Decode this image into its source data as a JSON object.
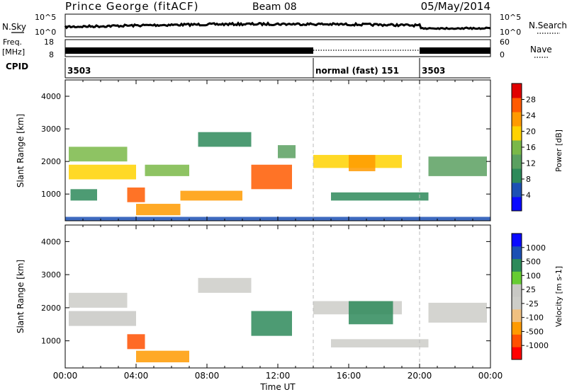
{
  "header": {
    "station": "Prince George (fitACF)",
    "beam": "Beam 08",
    "date": "05/May/2014"
  },
  "noise_panel": {
    "left_label": "N.Sky",
    "right_label": "N.Search",
    "left_ticks": [
      "10^5",
      "10^0"
    ],
    "right_ticks": [
      "10^5",
      "10^0"
    ]
  },
  "freq_panel": {
    "left_label_1": "Freq.",
    "left_label_2": "[MHz]",
    "right_label": "Nave",
    "left_ticks": [
      "18",
      "8"
    ],
    "right_ticks": [
      "60",
      "0"
    ]
  },
  "cpid_panel": {
    "label": "CPID",
    "segments": [
      {
        "start_h": 0,
        "end_h": 14,
        "text": "3503"
      },
      {
        "start_h": 14,
        "end_h": 20,
        "text": "normal (fast) 151"
      },
      {
        "start_h": 20,
        "end_h": 24,
        "text": "3503"
      }
    ]
  },
  "colors": {
    "power": [
      "#0a0aff",
      "#1c50b4",
      "#2e8a5a",
      "#5aa060",
      "#7ab848",
      "#ffd200",
      "#ff9a00",
      "#ff5a00",
      "#e00000"
    ],
    "velocity": [
      "#ff0000",
      "#ff5000",
      "#ff9a00",
      "#f0c080",
      "#cdcdc8",
      "#c8c8c4",
      "#66cc33",
      "#2e8a5a",
      "#1c50b4",
      "#0a0aff"
    ]
  },
  "chart_data": [
    {
      "type": "heatmap",
      "title": "Power",
      "xlabel": "",
      "ylabel": "Slant Range [km]",
      "x_ticks": [
        "00:00",
        "04:00",
        "08:00",
        "12:00",
        "16:00",
        "20:00",
        "00:00"
      ],
      "y_ticks": [
        "1000",
        "2000",
        "3000",
        "4000"
      ],
      "xlim_hours": [
        0,
        24
      ],
      "ylim_km": [
        180,
        4500
      ],
      "colorbar": {
        "label": "Power [dB]",
        "ticks": [
          "4",
          "8",
          "12",
          "16",
          "20",
          "24",
          "28"
        ],
        "range": [
          0,
          30
        ]
      },
      "echo_regions": [
        {
          "t0": 0.2,
          "t1": 4.0,
          "r0": 1450,
          "r1": 1900,
          "value": 17
        },
        {
          "t0": 0.2,
          "t1": 3.5,
          "r0": 2000,
          "r1": 2450,
          "value": 14
        },
        {
          "t0": 0.3,
          "t1": 1.8,
          "r0": 800,
          "r1": 1150,
          "value": 9
        },
        {
          "t0": 3.5,
          "t1": 4.5,
          "r0": 750,
          "r1": 1200,
          "value": 24
        },
        {
          "t0": 4.0,
          "t1": 6.5,
          "r0": 350,
          "r1": 700,
          "value": 20
        },
        {
          "t0": 4.5,
          "t1": 7.0,
          "r0": 1550,
          "r1": 1900,
          "value": 15
        },
        {
          "t0": 6.5,
          "t1": 10.0,
          "r0": 800,
          "r1": 1100,
          "value": 21
        },
        {
          "t0": 7.5,
          "t1": 10.5,
          "r0": 2450,
          "r1": 2900,
          "value": 8
        },
        {
          "t0": 10.5,
          "t1": 12.8,
          "r0": 1150,
          "r1": 1900,
          "value": 25
        },
        {
          "t0": 12.0,
          "t1": 13.0,
          "r0": 2100,
          "r1": 2500,
          "value": 12
        },
        {
          "t0": 14.0,
          "t1": 19.0,
          "r0": 1800,
          "r1": 2200,
          "value": 17
        },
        {
          "t0": 16.0,
          "t1": 17.5,
          "r0": 1700,
          "r1": 2200,
          "value": 22
        },
        {
          "t0": 15.0,
          "t1": 20.5,
          "r0": 800,
          "r1": 1050,
          "value": 8
        },
        {
          "t0": 20.5,
          "t1": 23.8,
          "r0": 1550,
          "r1": 2150,
          "value": 12
        },
        {
          "t0": 0.0,
          "t1": 24.0,
          "r0": 180,
          "r1": 300,
          "value": 4
        }
      ]
    },
    {
      "type": "heatmap",
      "title": "Velocity",
      "xlabel": "Time UT",
      "ylabel": "Slant Range [km]",
      "x_ticks": [
        "00:00",
        "04:00",
        "08:00",
        "12:00",
        "16:00",
        "20:00",
        "00:00"
      ],
      "y_ticks": [
        "1000",
        "2000",
        "3000",
        "4000"
      ],
      "xlim_hours": [
        0,
        24
      ],
      "ylim_km": [
        180,
        4500
      ],
      "colorbar": {
        "label": "Velocity [m s-1]",
        "ticks": [
          "1000",
          "500",
          "100",
          "25",
          "-25",
          "-100",
          "-500",
          "-1000"
        ],
        "range": [
          -1000,
          1000
        ]
      },
      "echo_regions": [
        {
          "t0": 0.2,
          "t1": 4.0,
          "r0": 1450,
          "r1": 1900,
          "value": 5
        },
        {
          "t0": 0.2,
          "t1": 3.5,
          "r0": 2000,
          "r1": 2450,
          "value": -5
        },
        {
          "t0": 3.5,
          "t1": 4.5,
          "r0": 750,
          "r1": 1200,
          "value": -900
        },
        {
          "t0": 4.0,
          "t1": 7.0,
          "r0": 350,
          "r1": 700,
          "value": -450
        },
        {
          "t0": 7.5,
          "t1": 10.5,
          "r0": 2450,
          "r1": 2900,
          "value": 0
        },
        {
          "t0": 10.5,
          "t1": 12.8,
          "r0": 1150,
          "r1": 1900,
          "value": 200
        },
        {
          "t0": 14.0,
          "t1": 19.0,
          "r0": 1800,
          "r1": 2200,
          "value": 0
        },
        {
          "t0": 16.0,
          "t1": 18.5,
          "r0": 1500,
          "r1": 2200,
          "value": 350
        },
        {
          "t0": 20.5,
          "t1": 23.8,
          "r0": 1550,
          "r1": 2150,
          "value": -5
        },
        {
          "t0": 15.0,
          "t1": 20.5,
          "r0": 800,
          "r1": 1050,
          "value": 0
        }
      ]
    }
  ]
}
